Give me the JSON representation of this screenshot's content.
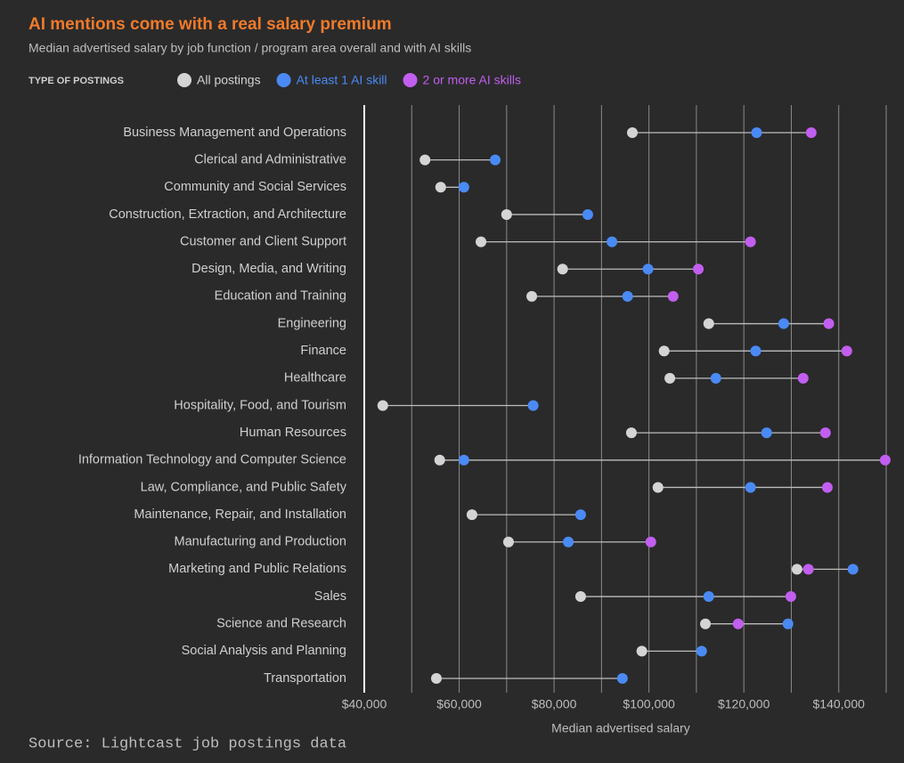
{
  "chart_data": {
    "type": "dot",
    "title": "AI mentions come with a real salary premium",
    "subtitle": "Median advertised salary by job function / program area overall and with AI skills",
    "legend_title": "TYPE OF POSTINGS",
    "x_label": "Median advertised salary",
    "source": "Source: Lightcast job postings data",
    "categories": [
      "Business Management and Operations",
      "Clerical and Administrative",
      "Community and Social Services",
      "Construction, Extraction, and Architecture",
      "Customer and Client Support",
      "Design, Media, and Writing",
      "Education and Training",
      "Engineering",
      "Finance",
      "Healthcare",
      "Hospitality, Food, and Tourism",
      "Human Resources",
      "Information Technology and Computer Science",
      "Law, Compliance, and Public Safety",
      "Maintenance, Repair, and Installation",
      "Manufacturing and Production",
      "Marketing and Public Relations",
      "Sales",
      "Science and Research",
      "Social Analysis and Planning",
      "Transportation"
    ],
    "series": [
      {
        "name": "All postings",
        "color": "#d4d4d4",
        "values": [
          96500,
          52800,
          56100,
          70000,
          64600,
          81800,
          75300,
          112600,
          103200,
          104400,
          43900,
          96300,
          55900,
          101900,
          62700,
          70400,
          131200,
          85600,
          111900,
          98500,
          55200
        ]
      },
      {
        "name": "At least 1 AI skill",
        "color": "#4a8af4",
        "values": [
          122700,
          67600,
          61000,
          87100,
          92200,
          99800,
          95500,
          128400,
          122500,
          114100,
          75600,
          124800,
          61000,
          121400,
          85600,
          83000,
          143000,
          112600,
          129300,
          111100,
          94400
        ]
      },
      {
        "name": "2 or more AI skills",
        "color": "#c25ef0",
        "values": [
          134200,
          null,
          null,
          null,
          121400,
          110400,
          105100,
          137900,
          141700,
          132500,
          null,
          137200,
          149800,
          137600,
          null,
          100400,
          133600,
          129900,
          118800,
          null,
          null
        ]
      }
    ],
    "xlim": [
      40000,
      150000
    ],
    "xticks": [
      {
        "value": 40000,
        "label": "$40,000"
      },
      {
        "value": 60000,
        "label": "$60,000"
      },
      {
        "value": 80000,
        "label": "$80,000"
      },
      {
        "value": 100000,
        "label": "$100,000"
      },
      {
        "value": 120000,
        "label": "$120,000"
      },
      {
        "value": 140000,
        "label": "$140,000"
      }
    ],
    "minor_xticks": [
      50000,
      70000,
      90000,
      110000,
      130000,
      150000
    ],
    "grid": true
  }
}
